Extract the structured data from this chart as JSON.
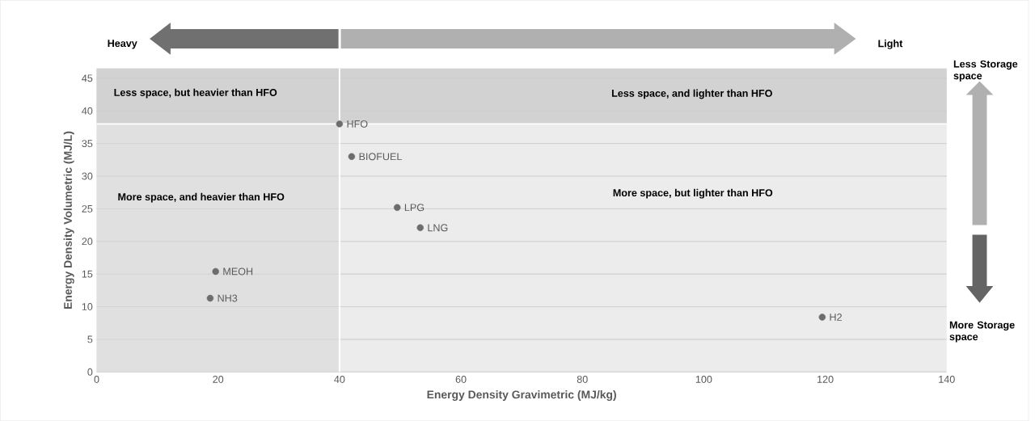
{
  "chart_data": {
    "type": "scatter",
    "xlabel": "Energy Density Gravimetric (MJ/kg)",
    "ylabel": "Energy Density Volumetric (MJ/L)",
    "xlim": [
      0,
      140
    ],
    "ylim": [
      0,
      46.5
    ],
    "xticks": [
      0,
      20,
      40,
      60,
      80,
      100,
      120,
      140
    ],
    "yticks": [
      0,
      5,
      10,
      15,
      20,
      25,
      30,
      35,
      40,
      45
    ],
    "grid": "y",
    "marker": "circle",
    "bands": [
      {
        "axis": "x",
        "from": 0,
        "to": 40,
        "color": "#e0e0e0"
      },
      {
        "axis": "y",
        "from": 38,
        "to": 46.5,
        "color": "#d2d2d2"
      }
    ],
    "ref_lines": [
      {
        "axis": "x",
        "value": 40,
        "color": "#ffffff"
      },
      {
        "axis": "y",
        "value": 38,
        "color": "#ffffff"
      }
    ],
    "series": [
      {
        "name": "HFO",
        "color": "#6d6d6d",
        "x": [
          40
        ],
        "values": [
          38
        ]
      },
      {
        "name": "BIOFUEL",
        "color": "#6d6d6d",
        "x": [
          42
        ],
        "values": [
          33
        ]
      },
      {
        "name": "LPG",
        "color": "#6d6d6d",
        "x": [
          49.5
        ],
        "values": [
          25.2
        ]
      },
      {
        "name": "LNG",
        "color": "#6d6d6d",
        "x": [
          53.3
        ],
        "values": [
          22.1
        ]
      },
      {
        "name": "MEOH",
        "color": "#6d6d6d",
        "x": [
          19.6
        ],
        "values": [
          15.4
        ]
      },
      {
        "name": "NH3",
        "color": "#6d6d6d",
        "x": [
          18.7
        ],
        "values": [
          11.3
        ]
      },
      {
        "name": "H2",
        "color": "#6d6d6d",
        "x": [
          119.5
        ],
        "values": [
          8.4
        ]
      }
    ],
    "annotations": [
      "Heavy",
      "Light",
      "Less Storage space",
      "More Storage space",
      "Less space, but heavier than HFO",
      "Less space, and lighter than HFO",
      "More space, and heavier than HFO",
      "More space, but lighter than HFO"
    ]
  }
}
